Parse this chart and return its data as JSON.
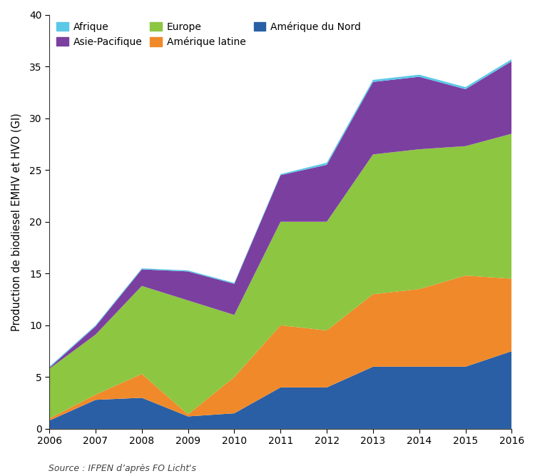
{
  "years": [
    2006,
    2007,
    2008,
    2009,
    2010,
    2011,
    2012,
    2013,
    2014,
    2015,
    2016
  ],
  "afrique": [
    0.1,
    0.1,
    0.1,
    0.1,
    0.1,
    0.1,
    0.2,
    0.2,
    0.2,
    0.2,
    0.2
  ],
  "amerique_nord": [
    0.8,
    2.8,
    3.0,
    1.2,
    1.5,
    4.0,
    4.0,
    6.0,
    6.0,
    6.0,
    7.5
  ],
  "amerique_latine": [
    0.2,
    0.5,
    2.3,
    0.2,
    3.5,
    6.0,
    5.5,
    7.0,
    7.5,
    8.8,
    7.0
  ],
  "europe": [
    4.8,
    5.8,
    8.5,
    11.0,
    6.0,
    10.0,
    10.5,
    13.5,
    13.5,
    12.5,
    14.0
  ],
  "asie_pacifique": [
    0.1,
    0.8,
    1.6,
    2.8,
    3.0,
    4.5,
    5.5,
    7.0,
    7.0,
    5.5,
    7.0
  ],
  "colors": {
    "afrique": "#5bc8e8",
    "amerique_nord": "#2a5fa5",
    "amerique_latine": "#f0892a",
    "europe": "#8dc641",
    "asie_pacifique": "#7b3fa0"
  },
  "labels": {
    "afrique": "Afrique",
    "asie_pacifique": "Asie-Pacifique",
    "europe": "Europe",
    "amerique_latine": "Amérique latine",
    "amerique_nord": "Amérique du Nord"
  },
  "ylabel": "Production de biodiesel EMHV et HVO (Gl)",
  "ylim": [
    0,
    40
  ],
  "yticks": [
    0,
    5,
    10,
    15,
    20,
    25,
    30,
    35,
    40
  ],
  "source": "Source : IFPEN d’après FO Licht's",
  "background_color": "#ffffff"
}
